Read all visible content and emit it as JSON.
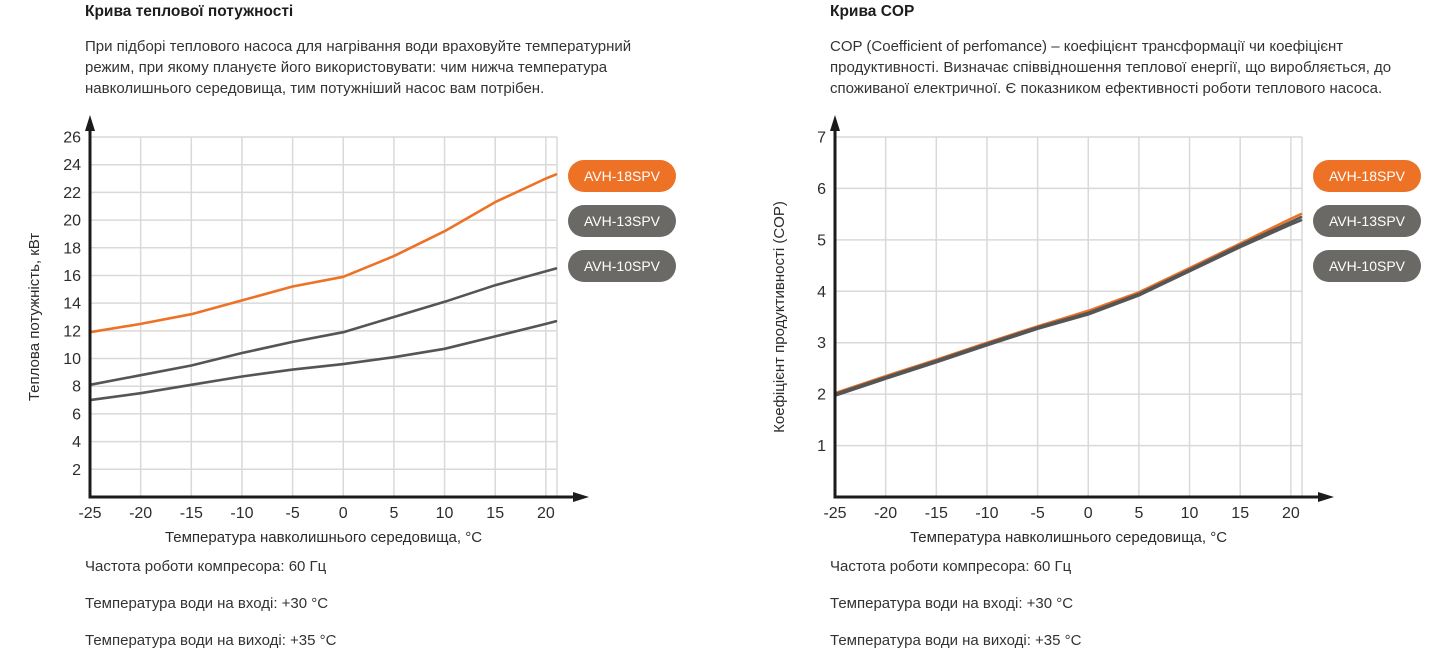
{
  "colors": {
    "accent_orange": "#ED7226",
    "legend_gray": "#6B6965",
    "curve_gray": "#555555",
    "grid": "#d9d9d9",
    "axis": "#1b1b1b",
    "text": "#333333"
  },
  "panels": [
    {
      "title": "Крива теплової потужності",
      "description": "При підборі теплового насоса для нагрівання води враховуйте температурний режим, при якому плануєте його використовувати: чим нижча температура навколишнього середовища, тим потужніший насос вам потрібен.",
      "legend": [
        {
          "label": "AVH-18SPV",
          "color": "#ED7226"
        },
        {
          "label": "AVH-13SPV",
          "color": "#6B6965"
        },
        {
          "label": "AVH-10SPV",
          "color": "#6B6965"
        }
      ],
      "notes": [
        "Частота роботи компресора: 60 Гц",
        "Температура води на вході: +30 °С",
        "Температура води на виході: +35 °С"
      ]
    },
    {
      "title": "Крива COP",
      "description": "COP (Coefficient of perfomance) – коефіцієнт трансформації чи коефіцієнт продуктивності. Визначає співвідношення теплової енергії, що виробляється, до споживаної електричної. Є показником ефективності роботи теплового насоса.",
      "legend": [
        {
          "label": "AVH-18SPV",
          "color": "#ED7226"
        },
        {
          "label": "AVH-13SPV",
          "color": "#6B6965"
        },
        {
          "label": "AVH-10SPV",
          "color": "#6B6965"
        }
      ],
      "notes": [
        "Частота роботи компресора: 60 Гц",
        "Температура води на вході: +30 °С",
        "Температура води на виході: +35 °С"
      ]
    }
  ],
  "chart_data": [
    {
      "type": "line",
      "title": "Крива теплової потужності",
      "xlabel": "Температура навколишнього середовища, °С",
      "ylabel": "Теплова потужність, кВт",
      "x": [
        -25,
        -20,
        -15,
        -10,
        -5,
        0,
        5,
        10,
        15,
        20,
        21
      ],
      "series": [
        {
          "name": "AVH-18SPV",
          "color": "#ED7226",
          "values": [
            11.9,
            12.5,
            13.2,
            14.2,
            15.2,
            15.9,
            17.4,
            19.2,
            21.3,
            23.0,
            23.3
          ]
        },
        {
          "name": "AVH-13SPV",
          "color": "#555555",
          "values": [
            8.1,
            8.8,
            9.5,
            10.4,
            11.2,
            11.9,
            13.0,
            14.1,
            15.3,
            16.3,
            16.5
          ]
        },
        {
          "name": "AVH-10SPV",
          "color": "#555555",
          "values": [
            7.0,
            7.5,
            8.1,
            8.7,
            9.2,
            9.6,
            10.1,
            10.7,
            11.6,
            12.5,
            12.7
          ]
        }
      ],
      "xlim": [
        -25,
        21.1
      ],
      "ylim": [
        0,
        26
      ],
      "x_ticks": [
        -25,
        -20,
        -15,
        -10,
        -5,
        0,
        5,
        10,
        15,
        20
      ],
      "y_ticks": [
        2,
        4,
        6,
        8,
        10,
        12,
        14,
        16,
        18,
        20,
        22,
        24,
        26
      ],
      "grid": true,
      "legend_position": "right"
    },
    {
      "type": "line",
      "title": "Крива COP",
      "xlabel": "Температура навколишнього середовища, °С",
      "ylabel": "Коефіцієнт продуктивності (COP)",
      "x": [
        -25,
        -20,
        -15,
        -10,
        -5,
        0,
        5,
        10,
        15,
        20,
        21
      ],
      "series": [
        {
          "name": "AVH-18SPV",
          "color": "#ED7226",
          "values": [
            2.02,
            2.35,
            2.67,
            3.0,
            3.32,
            3.62,
            3.98,
            4.45,
            4.93,
            5.41,
            5.5
          ]
        },
        {
          "name": "AVH-13SPV",
          "color": "#555555",
          "values": [
            2.0,
            2.33,
            2.65,
            2.98,
            3.3,
            3.58,
            3.95,
            4.42,
            4.9,
            5.35,
            5.44
          ]
        },
        {
          "name": "AVH-10SPV",
          "color": "#555555",
          "values": [
            1.97,
            2.3,
            2.62,
            2.95,
            3.27,
            3.55,
            3.92,
            4.39,
            4.86,
            5.3,
            5.38
          ]
        }
      ],
      "xlim": [
        -25,
        21.1
      ],
      "ylim": [
        0,
        7
      ],
      "x_ticks": [
        -25,
        -20,
        -15,
        -10,
        -5,
        0,
        5,
        10,
        15,
        20
      ],
      "y_ticks": [
        1,
        2,
        3,
        4,
        5,
        6,
        7
      ],
      "grid": true,
      "legend_position": "right"
    }
  ]
}
